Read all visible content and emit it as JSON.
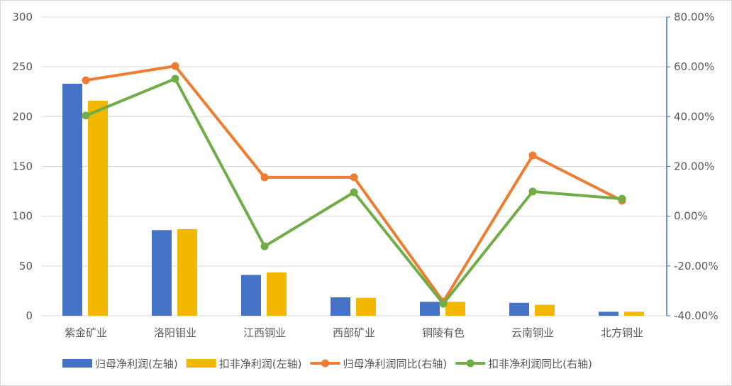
{
  "chart_data": {
    "type": "bar+line",
    "categories": [
      "紫金矿业",
      "洛阳钼业",
      "江西铜业",
      "西部矿业",
      "铜陵有色",
      "云南铜业",
      "北方铜业"
    ],
    "series": [
      {
        "name": "归母净利润(左轴)",
        "type": "bar",
        "axis": "left",
        "color": "#4472C4",
        "values": [
          233,
          86,
          41,
          18.5,
          14,
          13,
          4
        ]
      },
      {
        "name": "扣非净利润(左轴)",
        "type": "bar",
        "axis": "left",
        "color": "#F2B800",
        "values": [
          216,
          87,
          43.5,
          18,
          14,
          11,
          4
        ]
      },
      {
        "name": "归母净利润同比(右轴)",
        "type": "line",
        "axis": "right",
        "color": "#ED7D31",
        "values": [
          54.6,
          60.3,
          15.6,
          15.6,
          -34.3,
          24.4,
          6.2
        ]
      },
      {
        "name": "扣非净利润同比(右轴)",
        "type": "line",
        "axis": "right",
        "color": "#70AD47",
        "values": [
          40.4,
          55.2,
          -12.1,
          9.6,
          -35.2,
          9.9,
          7.0
        ]
      }
    ],
    "yleft": {
      "min": 0,
      "max": 300,
      "ticks": [
        "0",
        "50",
        "100",
        "150",
        "200",
        "250",
        "300"
      ]
    },
    "yright": {
      "min": -40,
      "max": 80,
      "ticks": [
        "-40.00%",
        "-20.00%",
        "0.00%",
        "20.00%",
        "40.00%",
        "60.00%",
        "80.00%"
      ]
    },
    "grid": true,
    "legend": "bottom"
  }
}
